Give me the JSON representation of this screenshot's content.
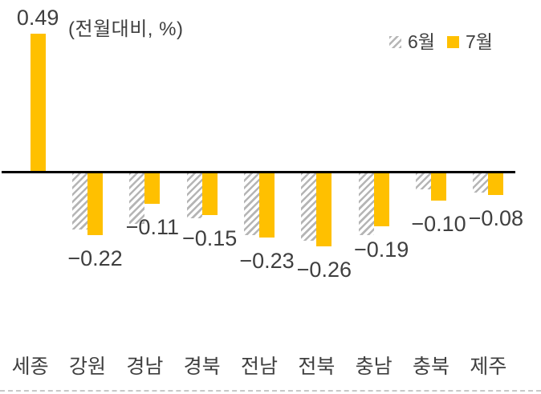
{
  "chart_data": {
    "type": "bar",
    "title": "(전월대비, %)",
    "categories": [
      "세종",
      "강원",
      "경남",
      "경북",
      "전남",
      "전북",
      "충남",
      "충북",
      "제주"
    ],
    "series": [
      {
        "name": "6월",
        "style": "hatched",
        "color": "#B5B5B5",
        "estimated": true,
        "labels_shown": false,
        "values": [
          0.0,
          -0.2,
          -0.18,
          -0.16,
          -0.22,
          -0.24,
          -0.22,
          -0.06,
          -0.07
        ]
      },
      {
        "name": "7월",
        "style": "solid",
        "color": "#FFC000",
        "labels_shown": true,
        "values": [
          0.49,
          -0.22,
          -0.11,
          -0.15,
          -0.23,
          -0.26,
          -0.19,
          -0.1,
          -0.08
        ],
        "labels": [
          "0.49",
          "−0.22",
          "−0.11",
          "−0.15",
          "−0.23",
          "−0.26",
          "−0.19",
          "−0.10",
          "−0.08"
        ]
      }
    ],
    "baseline": 0,
    "ylim": [
      -0.3,
      0.52
    ],
    "grid": false,
    "legend_position": "top-right"
  },
  "legend": {
    "items": [
      {
        "label": "6월",
        "swatch": "hatched-gray"
      },
      {
        "label": "7월",
        "swatch": "solid-yellow"
      }
    ]
  },
  "colors": {
    "july_bar": "#FFC000",
    "june_hatch": "#B5B5B5",
    "zero_axis": "#000000",
    "text": "#3F3F3F",
    "bottom_dashed_line": "#C8C8C8"
  }
}
